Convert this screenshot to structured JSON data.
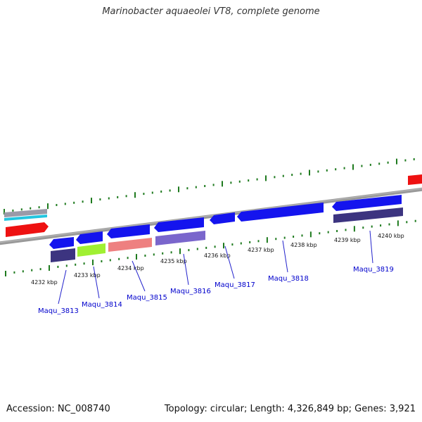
{
  "title": "Marinobacter aquaeolei VT8, complete genome",
  "footer": {
    "accession": "Accession: NC_008740",
    "summary": "Topology: circular; Length: 4,326,849 bp; Genes: 3,921"
  },
  "colors": {
    "backbone": "#888888",
    "tick": "#1e7a1e",
    "gene_label": "#0000cc",
    "scale_text": "#111111"
  },
  "scale_labels": [
    "4232 kbp",
    "4233 kbp",
    "4234 kbp",
    "4235 kbp",
    "4236 kbp",
    "4237 kbp",
    "4238 kbp",
    "4239 kbp",
    "4240 kbp"
  ],
  "gene_labels": [
    "Maqu_3813",
    "Maqu_3814",
    "Maqu_3815",
    "Maqu_3816",
    "Maqu_3817",
    "Maqu_3818",
    "Maqu_3819"
  ]
}
